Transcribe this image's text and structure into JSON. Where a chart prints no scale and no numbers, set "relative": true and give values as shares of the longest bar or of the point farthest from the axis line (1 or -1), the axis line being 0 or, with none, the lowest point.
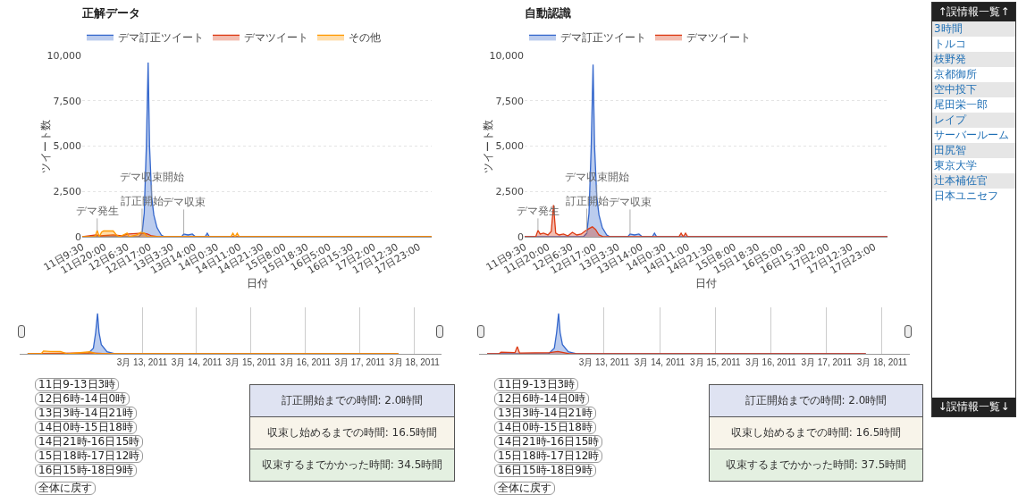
{
  "chart_data": [
    {
      "type": "area",
      "title": "正解データ",
      "xlabel": "日付",
      "ylabel": "ツイート数",
      "xlim": [
        "2011-03-11T09:30",
        "2011-03-18T05:00"
      ],
      "xticks": [
        {
          "value": "2011-03-11T09:30",
          "label": "11日9:30"
        },
        {
          "value": "2011-03-11T20:00",
          "label": "11日20:00"
        },
        {
          "value": "2011-03-12T06:30",
          "label": "12日6:30"
        },
        {
          "value": "2011-03-12T17:00",
          "label": "12日17:00"
        },
        {
          "value": "2011-03-13T03:30",
          "label": "13日3:30"
        },
        {
          "value": "2011-03-13T14:00",
          "label": "13日14:00"
        },
        {
          "value": "2011-03-14T00:30",
          "label": "14日0:30"
        },
        {
          "value": "2011-03-14T11:00",
          "label": "14日11:00"
        },
        {
          "value": "2011-03-14T21:30",
          "label": "14日21:30"
        },
        {
          "value": "2011-03-15T08:00",
          "label": "15日8:00"
        },
        {
          "value": "2011-03-15T18:30",
          "label": "15日18:30"
        },
        {
          "value": "2011-03-16T05:00",
          "label": "16日5:00"
        },
        {
          "value": "2011-03-16T15:30",
          "label": "16日15:30"
        },
        {
          "value": "2011-03-17T02:00",
          "label": "17日2:00"
        },
        {
          "value": "2011-03-17T12:30",
          "label": "17日12:30"
        },
        {
          "value": "2011-03-17T23:00",
          "label": "17日23:00"
        }
      ],
      "ylim": [
        0,
        10000
      ],
      "yticks": [
        0,
        {
          "value": 2500,
          "label": "2,500"
        },
        {
          "value": 5000,
          "label": "5,000"
        },
        {
          "value": 7500,
          "label": "7,500"
        },
        {
          "value": 10000,
          "label": "10,000"
        }
      ],
      "grid": "y",
      "legend": "top left",
      "marker": "none",
      "series": [
        {
          "name": "デマ訂正ツイート",
          "color": "#3366cc",
          "x": [
            "2011-03-11T09:30",
            "2011-03-12T06:00",
            "2011-03-12T12:00",
            "2011-03-12T13:30",
            "2011-03-12T14:30",
            "2011-03-12T15:30",
            "2011-03-12T16:20",
            "2011-03-12T17:00",
            "2011-03-12T18:00",
            "2011-03-12T19:00",
            "2011-03-12T20:30",
            "2011-03-12T22:30",
            "2011-03-13T00:00",
            "2011-03-13T08:00",
            "2011-03-13T09:00",
            "2011-03-13T11:00",
            "2011-03-13T13:00",
            "2011-03-13T14:30",
            "2011-03-13T19:00",
            "2011-03-13T20:00",
            "2011-03-13T21:00",
            "2011-03-18T05:00"
          ],
          "values": [
            0,
            0,
            0,
            200,
            1300,
            5000,
            9600,
            5000,
            2200,
            1200,
            500,
            100,
            0,
            0,
            150,
            100,
            150,
            0,
            0,
            200,
            0,
            0
          ]
        },
        {
          "name": "デマツイート",
          "color": "#dc3912",
          "x": [
            "2011-03-11T09:30",
            "2011-03-11T16:00",
            "2011-03-11T18:00",
            "2011-03-12T00:00",
            "2011-03-12T04:00",
            "2011-03-12T07:00",
            "2011-03-12T14:00",
            "2011-03-12T16:00",
            "2011-03-12T18:00",
            "2011-03-12T21:00",
            "2011-03-18T05:00"
          ],
          "values": [
            0,
            100,
            50,
            100,
            50,
            150,
            200,
            150,
            50,
            0,
            0
          ]
        },
        {
          "name": "その他",
          "color": "#ff9900",
          "x": [
            "2011-03-11T09:30",
            "2011-03-11T15:30",
            "2011-03-11T16:30",
            "2011-03-11T17:30",
            "2011-03-11T18:30",
            "2011-03-11T19:30",
            "2011-03-12T00:00",
            "2011-03-12T01:30",
            "2011-03-12T03:00",
            "2011-03-12T06:30",
            "2011-03-12T07:30",
            "2011-03-12T11:00",
            "2011-03-12T13:00",
            "2011-03-12T14:30",
            "2011-03-12T16:00",
            "2011-03-14T07:00",
            "2011-03-14T08:00",
            "2011-03-14T09:00",
            "2011-03-14T10:00",
            "2011-03-14T11:00",
            "2011-03-18T05:00"
          ],
          "values": [
            0,
            0,
            350,
            0,
            250,
            320,
            320,
            100,
            0,
            200,
            0,
            100,
            250,
            200,
            0,
            0,
            200,
            0,
            200,
            0,
            0
          ]
        }
      ],
      "annotations": [
        {
          "text": "デマ発生",
          "x": "2011-03-11T16:30",
          "y": 350
        },
        {
          "text": "訂正開始",
          "x": "2011-03-12T13:30",
          "y": 200
        },
        {
          "text": "デマ収束開始",
          "x": "2011-03-12T18:00",
          "y": 2200
        },
        {
          "text": "デマ収束",
          "x": "2011-03-13T09:00",
          "y": 150
        }
      ]
    },
    {
      "type": "area",
      "title": "自動認識",
      "xlabel": "日付",
      "ylabel": "ツイート数",
      "xlim": [
        "2011-03-11T09:30",
        "2011-03-18T05:00"
      ],
      "xticks": [
        {
          "value": "2011-03-11T09:30",
          "label": "11日9:30"
        },
        {
          "value": "2011-03-11T20:00",
          "label": "11日20:00"
        },
        {
          "value": "2011-03-12T06:30",
          "label": "12日6:30"
        },
        {
          "value": "2011-03-12T17:00",
          "label": "12日17:00"
        },
        {
          "value": "2011-03-13T03:30",
          "label": "13日3:30"
        },
        {
          "value": "2011-03-13T14:00",
          "label": "13日14:00"
        },
        {
          "value": "2011-03-14T00:30",
          "label": "14日0:30"
        },
        {
          "value": "2011-03-14T11:00",
          "label": "14日11:00"
        },
        {
          "value": "2011-03-14T21:30",
          "label": "14日21:30"
        },
        {
          "value": "2011-03-15T08:00",
          "label": "15日8:00"
        },
        {
          "value": "2011-03-15T18:30",
          "label": "15日18:30"
        },
        {
          "value": "2011-03-16T05:00",
          "label": "16日5:00"
        },
        {
          "value": "2011-03-16T15:30",
          "label": "16日15:30"
        },
        {
          "value": "2011-03-17T02:00",
          "label": "17日2:00"
        },
        {
          "value": "2011-03-17T12:30",
          "label": "17日12:30"
        },
        {
          "value": "2011-03-17T23:00",
          "label": "17日23:00"
        }
      ],
      "ylim": [
        0,
        10000
      ],
      "yticks": [
        0,
        {
          "value": 2500,
          "label": "2,500"
        },
        {
          "value": 5000,
          "label": "5,000"
        },
        {
          "value": 7500,
          "label": "7,500"
        },
        {
          "value": 10000,
          "label": "10,000"
        }
      ],
      "grid": "y",
      "legend": "top left",
      "marker": "none",
      "series": [
        {
          "name": "デマ訂正ツイート",
          "color": "#3366cc",
          "x": [
            "2011-03-11T09:30",
            "2011-03-12T06:00",
            "2011-03-12T12:00",
            "2011-03-12T13:30",
            "2011-03-12T14:30",
            "2011-03-12T15:30",
            "2011-03-12T16:20",
            "2011-03-12T17:00",
            "2011-03-12T18:00",
            "2011-03-12T19:00",
            "2011-03-12T20:30",
            "2011-03-12T22:30",
            "2011-03-13T00:00",
            "2011-03-13T08:00",
            "2011-03-13T09:00",
            "2011-03-13T11:00",
            "2011-03-13T13:00",
            "2011-03-13T14:30",
            "2011-03-13T19:00",
            "2011-03-13T20:00",
            "2011-03-13T21:00",
            "2011-03-18T05:00"
          ],
          "values": [
            0,
            0,
            0,
            200,
            1300,
            5000,
            9500,
            5000,
            2200,
            1200,
            500,
            100,
            0,
            0,
            150,
            100,
            150,
            0,
            0,
            200,
            0,
            0
          ]
        },
        {
          "name": "デマツイート",
          "color": "#dc3912",
          "x": [
            "2011-03-11T09:30",
            "2011-03-11T14:30",
            "2011-03-11T15:30",
            "2011-03-11T16:30",
            "2011-03-11T18:00",
            "2011-03-11T20:00",
            "2011-03-11T21:30",
            "2011-03-11T22:30",
            "2011-03-11T23:30",
            "2011-03-12T01:00",
            "2011-03-12T03:00",
            "2011-03-12T05:00",
            "2011-03-12T07:00",
            "2011-03-12T09:00",
            "2011-03-12T11:00",
            "2011-03-12T12:30",
            "2011-03-12T14:30",
            "2011-03-12T16:00",
            "2011-03-12T17:30",
            "2011-03-12T19:00",
            "2011-03-12T21:00",
            "2011-03-14T07:00",
            "2011-03-14T08:00",
            "2011-03-14T09:00",
            "2011-03-14T10:00",
            "2011-03-14T11:00",
            "2011-03-18T05:00"
          ],
          "values": [
            0,
            0,
            350,
            150,
            200,
            100,
            300,
            1750,
            200,
            100,
            150,
            50,
            250,
            100,
            150,
            300,
            450,
            550,
            400,
            100,
            0,
            0,
            200,
            0,
            200,
            0,
            0
          ]
        }
      ],
      "annotations": [
        {
          "text": "デマ発生",
          "x": "2011-03-11T15:30",
          "y": 350
        },
        {
          "text": "訂正開始",
          "x": "2011-03-12T13:30",
          "y": 200
        },
        {
          "text": "デマ収束開始",
          "x": "2011-03-12T18:00",
          "y": 2200
        },
        {
          "text": "デマ収束",
          "x": "2011-03-13T09:00",
          "y": 150
        }
      ]
    },
    {
      "type": "area",
      "relative": true,
      "xlim": [
        "2011-03-11T06:00",
        "2011-03-19T00:00"
      ],
      "xticks": [
        {
          "value": "2011-03-13T12:00",
          "label": "3月 13, 2011"
        },
        {
          "value": "2011-03-14T12:00",
          "label": "3月 14, 2011"
        },
        {
          "value": "2011-03-15T12:00",
          "label": "3月 15, 2011"
        },
        {
          "value": "2011-03-16T12:00",
          "label": "3月 16, 2011"
        },
        {
          "value": "2011-03-17T12:00",
          "label": "3月 17, 2011"
        },
        {
          "value": "2011-03-18T12:00",
          "label": "3月 18, 2011"
        }
      ],
      "grid": "x",
      "marker": "none",
      "series": [
        {
          "color": "#3366cc",
          "x": [
            "2011-03-11T09:30",
            "2011-03-12T12:00",
            "2011-03-12T14:30",
            "2011-03-12T15:30",
            "2011-03-12T16:20",
            "2011-03-12T17:00",
            "2011-03-12T18:00",
            "2011-03-12T20:30",
            "2011-03-13T00:00",
            "2011-03-18T05:00"
          ],
          "values": [
            0,
            0,
            0.14,
            0.52,
            1,
            0.52,
            0.23,
            0.05,
            0,
            0
          ]
        },
        {
          "color": "#dc3912",
          "x": [
            "2011-03-11T09:30",
            "2011-03-12T07:00",
            "2011-03-12T14:00",
            "2011-03-12T21:00",
            "2011-03-18T05:00"
          ],
          "values": [
            0,
            0.02,
            0.02,
            0,
            0
          ]
        },
        {
          "color": "#ff9900",
          "x": [
            "2011-03-11T09:30",
            "2011-03-11T15:30",
            "2011-03-11T16:30",
            "2011-03-11T19:30",
            "2011-03-12T00:00",
            "2011-03-12T03:00",
            "2011-03-12T13:00",
            "2011-03-12T16:00",
            "2011-03-18T05:00"
          ],
          "values": [
            0,
            0,
            0.07,
            0.06,
            0.06,
            0,
            0.05,
            0,
            0
          ]
        }
      ]
    },
    {
      "type": "area",
      "relative": true,
      "xlim": [
        "2011-03-11T06:00",
        "2011-03-19T00:00"
      ],
      "xticks": [
        {
          "value": "2011-03-13T12:00",
          "label": "3月 13, 2011"
        },
        {
          "value": "2011-03-14T12:00",
          "label": "3月 14, 2011"
        },
        {
          "value": "2011-03-15T12:00",
          "label": "3月 15, 2011"
        },
        {
          "value": "2011-03-16T12:00",
          "label": "3月 16, 2011"
        },
        {
          "value": "2011-03-17T12:00",
          "label": "3月 17, 2011"
        },
        {
          "value": "2011-03-18T12:00",
          "label": "3月 18, 2011"
        }
      ],
      "grid": "x",
      "marker": "none",
      "series": [
        {
          "color": "#3366cc",
          "x": [
            "2011-03-11T09:30",
            "2011-03-12T12:00",
            "2011-03-12T14:30",
            "2011-03-12T15:30",
            "2011-03-12T16:20",
            "2011-03-12T17:00",
            "2011-03-12T18:00",
            "2011-03-12T20:30",
            "2011-03-13T00:00",
            "2011-03-18T05:00"
          ],
          "values": [
            0,
            0,
            0.14,
            0.53,
            1,
            0.53,
            0.23,
            0.05,
            0,
            0
          ]
        },
        {
          "color": "#dc3912",
          "x": [
            "2011-03-11T09:30",
            "2011-03-11T14:30",
            "2011-03-11T15:30",
            "2011-03-11T21:30",
            "2011-03-11T22:30",
            "2011-03-11T23:30",
            "2011-03-12T12:30",
            "2011-03-12T16:00",
            "2011-03-12T21:00",
            "2011-03-18T05:00"
          ],
          "values": [
            0,
            0,
            0.04,
            0.03,
            0.18,
            0.02,
            0.03,
            0.06,
            0,
            0
          ]
        }
      ]
    },
    {
      "type": "other",
      "annotations": [
        "11日9-13日3時",
        "12日6時-14日0時",
        "13日3時-14日21時",
        "14日0時-15日18時",
        "14日21時-16日15時",
        "15日18時-17日12時",
        "16日15時-18日9時",
        "全体に戻す"
      ]
    },
    {
      "type": "other",
      "colors": [
        "#dfe3f2",
        "#f8f4ea",
        "#e4f0e1"
      ],
      "annotations": [
        "訂正開始までの時間: 2.0時間",
        "収束し始めるまでの時間: 16.5時間",
        "収束するまでかかった時間: 34.5時間"
      ]
    },
    {
      "type": "other",
      "annotations": [
        "11日9-13日3時",
        "12日6時-14日0時",
        "13日3時-14日21時",
        "14日0時-15日18時",
        "14日21時-16日15時",
        "15日18時-17日12時",
        "16日15時-18日9時",
        "全体に戻す"
      ]
    },
    {
      "type": "other",
      "colors": [
        "#dfe3f2",
        "#f8f4ea",
        "#e4f0e1"
      ],
      "annotations": [
        "訂正開始までの時間: 2.0時間",
        "収束し始めるまでの時間: 16.5時間",
        "収束するまでかかった時間: 37.5時間"
      ]
    },
    {
      "type": "other",
      "title": "↑誤情報一覧↑",
      "subtitle": "↓誤情報一覧↓",
      "annotations": [
        "3時間",
        "トルコ",
        "枝野発",
        "京都御所",
        "空中投下",
        "尾田栄一郎",
        "レイプ",
        "サーバールーム",
        "田尻智",
        "東京大学",
        "辻本補佐官",
        "日本ユニセフ"
      ]
    }
  ]
}
